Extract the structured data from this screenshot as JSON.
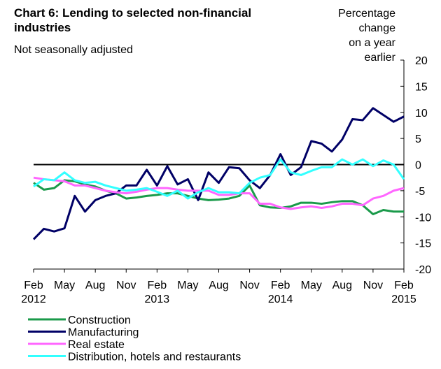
{
  "chart_data": {
    "type": "line",
    "title_lines": [
      "Chart 6: Lending to selected non-financial",
      "industries"
    ],
    "subtitle": "Not seasonally adjusted",
    "y_label_lines": [
      "Percentage",
      "change",
      "on a year",
      "earlier"
    ],
    "categories": [
      "Feb",
      null,
      null,
      "May",
      null,
      null,
      "Aug",
      null,
      null,
      "Nov",
      null,
      null,
      "Feb",
      null,
      null,
      "May",
      null,
      null,
      "Aug",
      null,
      null,
      "Nov",
      null,
      null,
      "Feb",
      null,
      null,
      "May",
      null,
      null,
      "Aug",
      null,
      null,
      "Nov",
      null,
      null,
      "Feb"
    ],
    "year_labels": [
      "2012",
      "2013",
      "2014",
      "2015"
    ],
    "ylim": [
      -20,
      20
    ],
    "yticks": [
      -20,
      -15,
      -10,
      -5,
      0,
      5,
      10,
      15,
      20
    ],
    "series": [
      {
        "name": "Construction",
        "color": "#1a9a4a",
        "values": [
          -3.5,
          -4.8,
          -4.5,
          -3,
          -3.2,
          -3.8,
          -4.2,
          -5,
          -5.5,
          -6.5,
          -6.3,
          -6,
          -5.8,
          -5.5,
          -5.5,
          -6,
          -6.5,
          -6.8,
          -6.7,
          -6.5,
          -6,
          -4,
          -7.8,
          -8.2,
          -8.3,
          -8,
          -7.3,
          -7.3,
          -7.5,
          -7.2,
          -7,
          -7,
          -7.8,
          -9.5,
          -8.7,
          -9,
          -9
        ]
      },
      {
        "name": "Manufacturing",
        "color": "#000066",
        "values": [
          -14.3,
          -12.3,
          -12.8,
          -12.2,
          -6,
          -9,
          -6.8,
          -6,
          -5.5,
          -4,
          -4,
          -1,
          -4,
          -0.3,
          -3.8,
          -2.8,
          -6.8,
          -1.5,
          -3.5,
          -0.5,
          -0.7,
          -3,
          -4.5,
          -2,
          2,
          -2,
          -0.5,
          4.5,
          4,
          2.5,
          4.8,
          8.7,
          8.5,
          10.8,
          9.5,
          8.2,
          9.2
        ]
      },
      {
        "name": "Real estate",
        "color": "#ff66ff",
        "values": [
          -2.5,
          -2.8,
          -3,
          -3.2,
          -4,
          -4,
          -4.5,
          -5,
          -5.3,
          -5.5,
          -5.2,
          -4.8,
          -4.5,
          -4.5,
          -4.8,
          -5,
          -5,
          -5,
          -5.8,
          -5.8,
          -5.5,
          -5.5,
          -7.5,
          -7.5,
          -8.2,
          -8.5,
          -8.2,
          -8,
          -8.3,
          -8,
          -7.5,
          -7.5,
          -7.8,
          -6.5,
          -6,
          -5,
          -4.5
        ]
      },
      {
        "name": "Distribution, hotels and restaurants",
        "color": "#33ffff",
        "values": [
          -4.2,
          -2.8,
          -3,
          -1.5,
          -3,
          -3.5,
          -3.3,
          -4,
          -4.5,
          -5,
          -4.8,
          -4.5,
          -5.2,
          -6,
          -5,
          -6.5,
          -5.3,
          -4.5,
          -5.3,
          -5.3,
          -5.5,
          -3.5,
          -2.5,
          -2,
          1,
          -1.5,
          -2,
          -1.2,
          -0.5,
          -0.5,
          1,
          0,
          1,
          -0.3,
          0.8,
          0,
          -2.8
        ]
      }
    ]
  }
}
